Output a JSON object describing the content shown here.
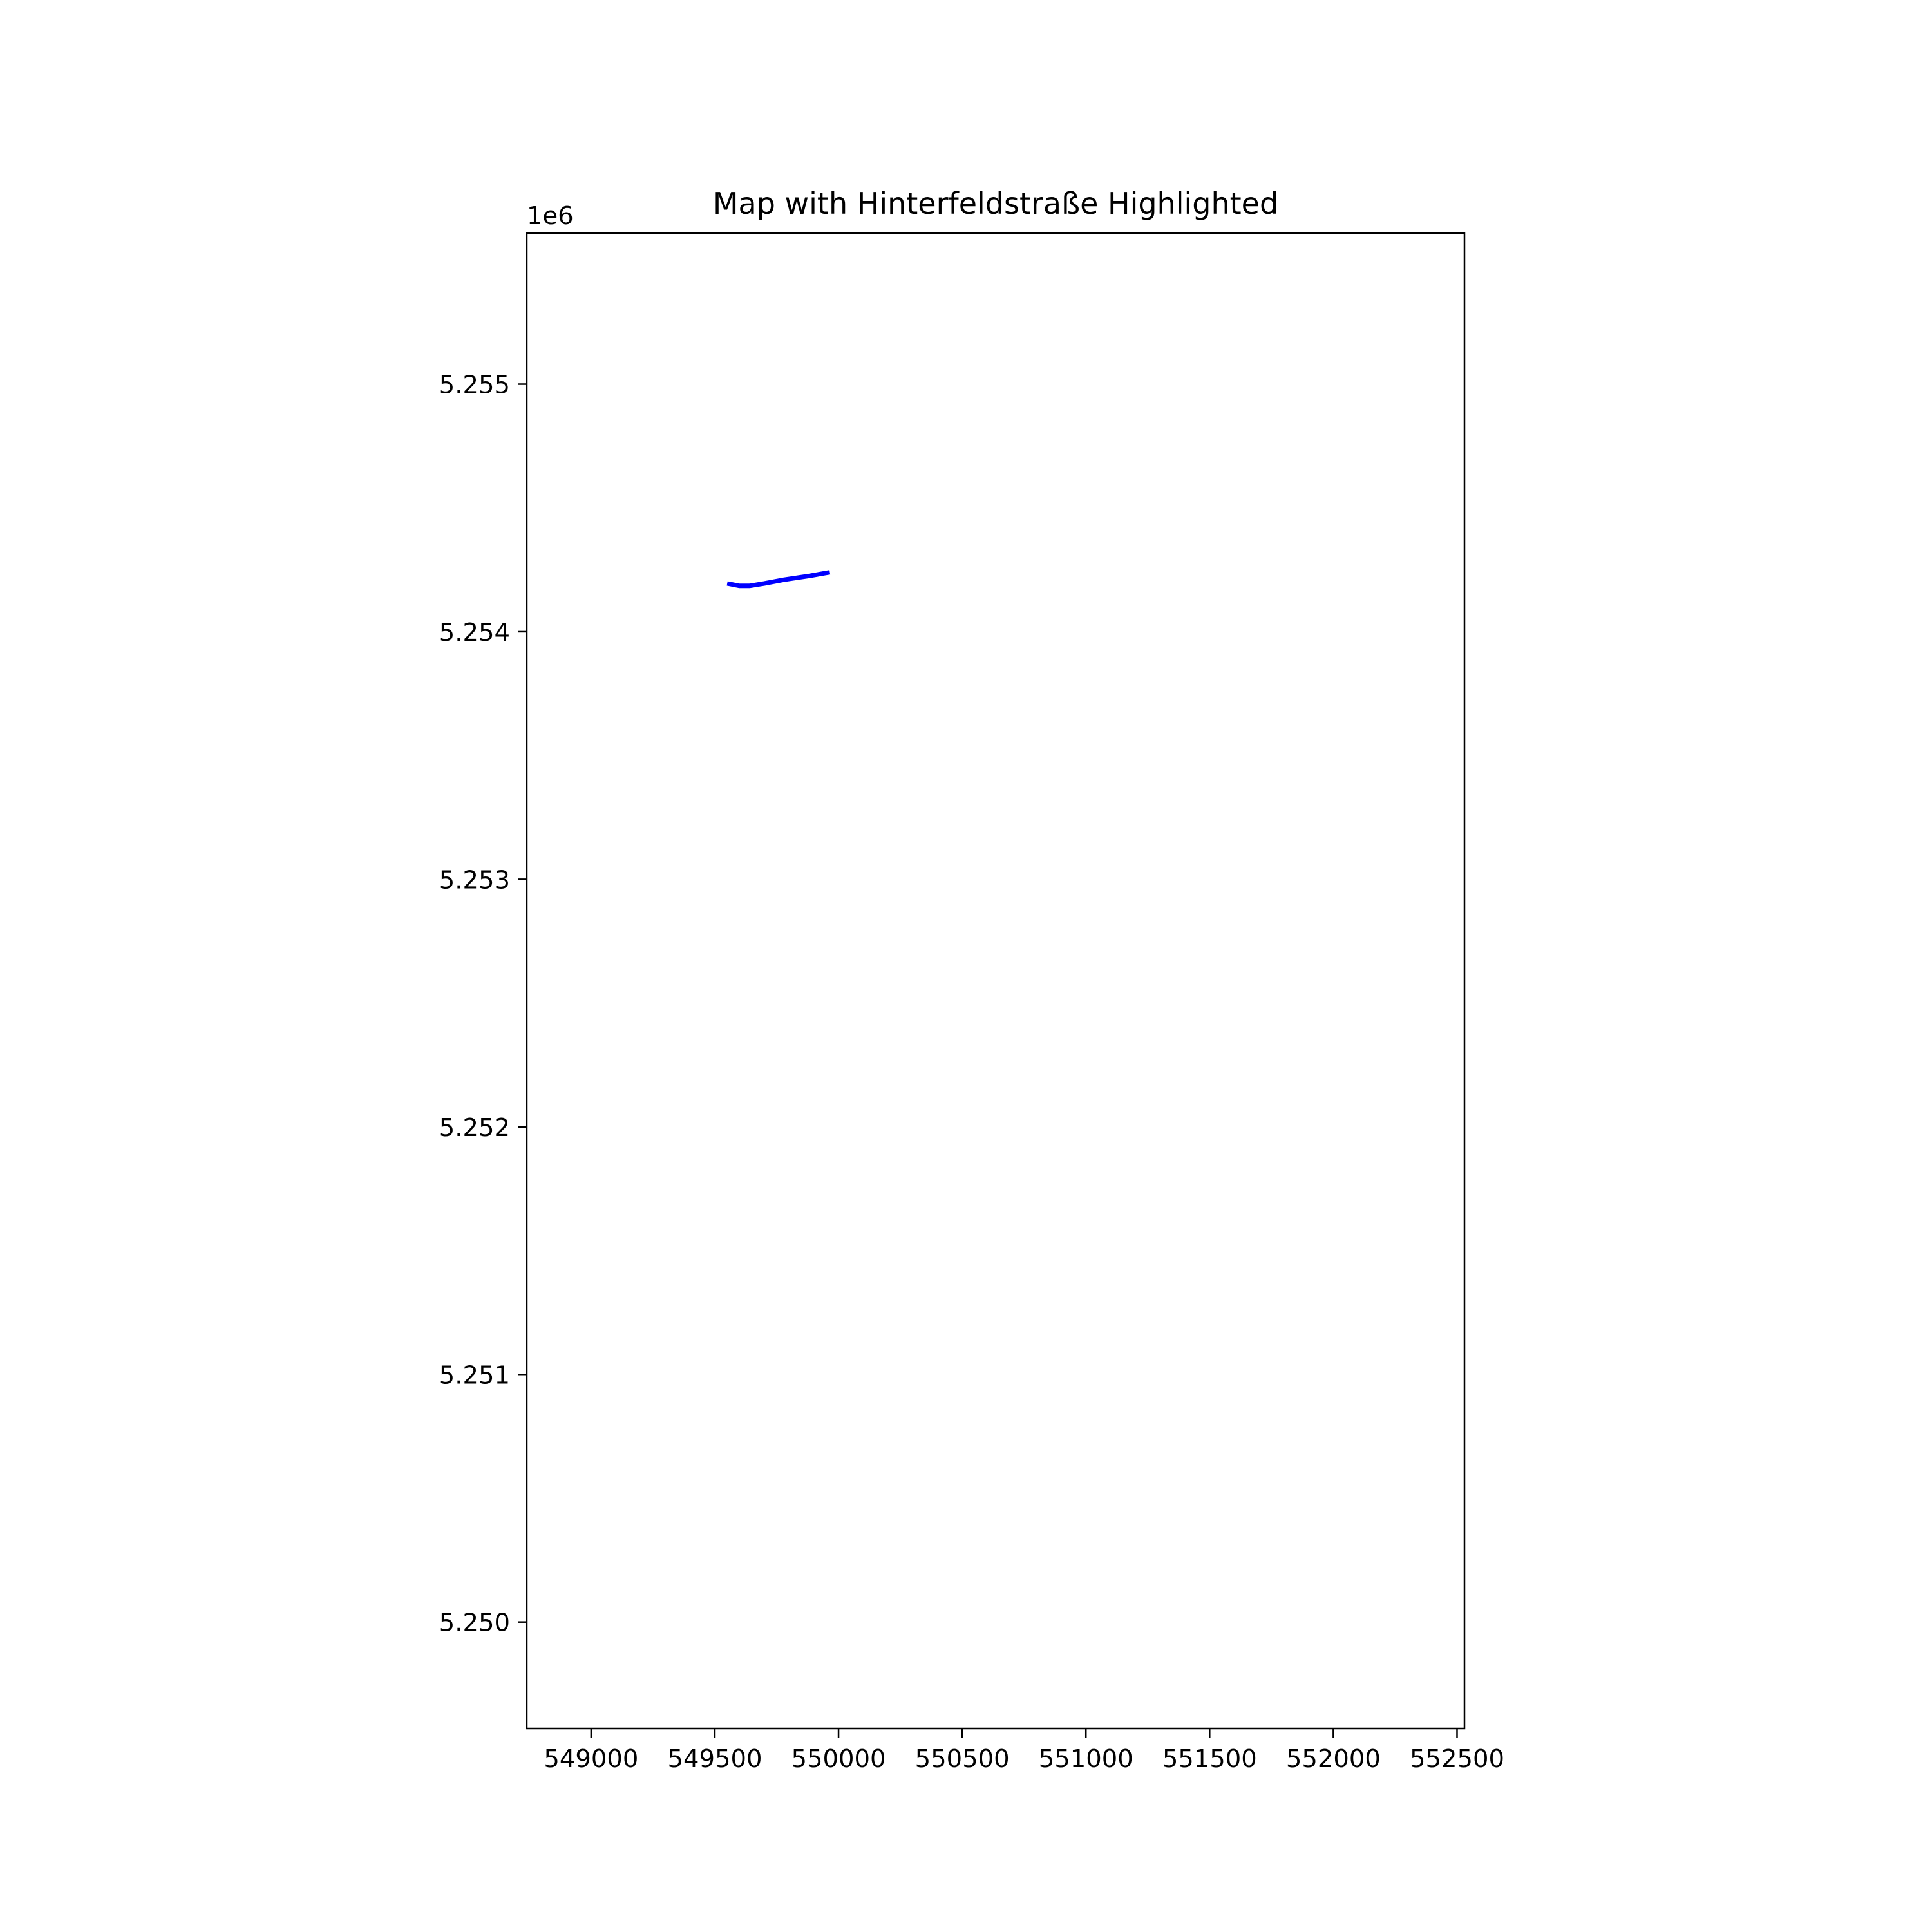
{
  "chart_data": {
    "type": "line",
    "title": "Map with Hinterfeldstraße Highlighted",
    "xlabel": "",
    "ylabel": "",
    "xlim": [
      548740,
      552530
    ],
    "ylim": [
      5249570,
      5255610
    ],
    "y_offset_label": "1e6",
    "x_ticks": [
      549000,
      549500,
      550000,
      550500,
      551000,
      551500,
      552000,
      552500
    ],
    "x_tick_labels": [
      "549000",
      "549500",
      "550000",
      "550500",
      "551000",
      "551500",
      "552000",
      "552500"
    ],
    "y_ticks": [
      5250000,
      5251000,
      5252000,
      5253000,
      5254000,
      5255000
    ],
    "y_tick_labels": [
      "5.250",
      "5.251",
      "5.252",
      "5.253",
      "5.254",
      "5.255"
    ],
    "grid": false,
    "series": [
      {
        "color": "#0000ff",
        "x": [
          549550,
          549600,
          549640,
          549700,
          549780,
          549880,
          549965
        ],
        "y": [
          5254195,
          5254185,
          5254185,
          5254195,
          5254210,
          5254225,
          5254240
        ]
      }
    ]
  }
}
